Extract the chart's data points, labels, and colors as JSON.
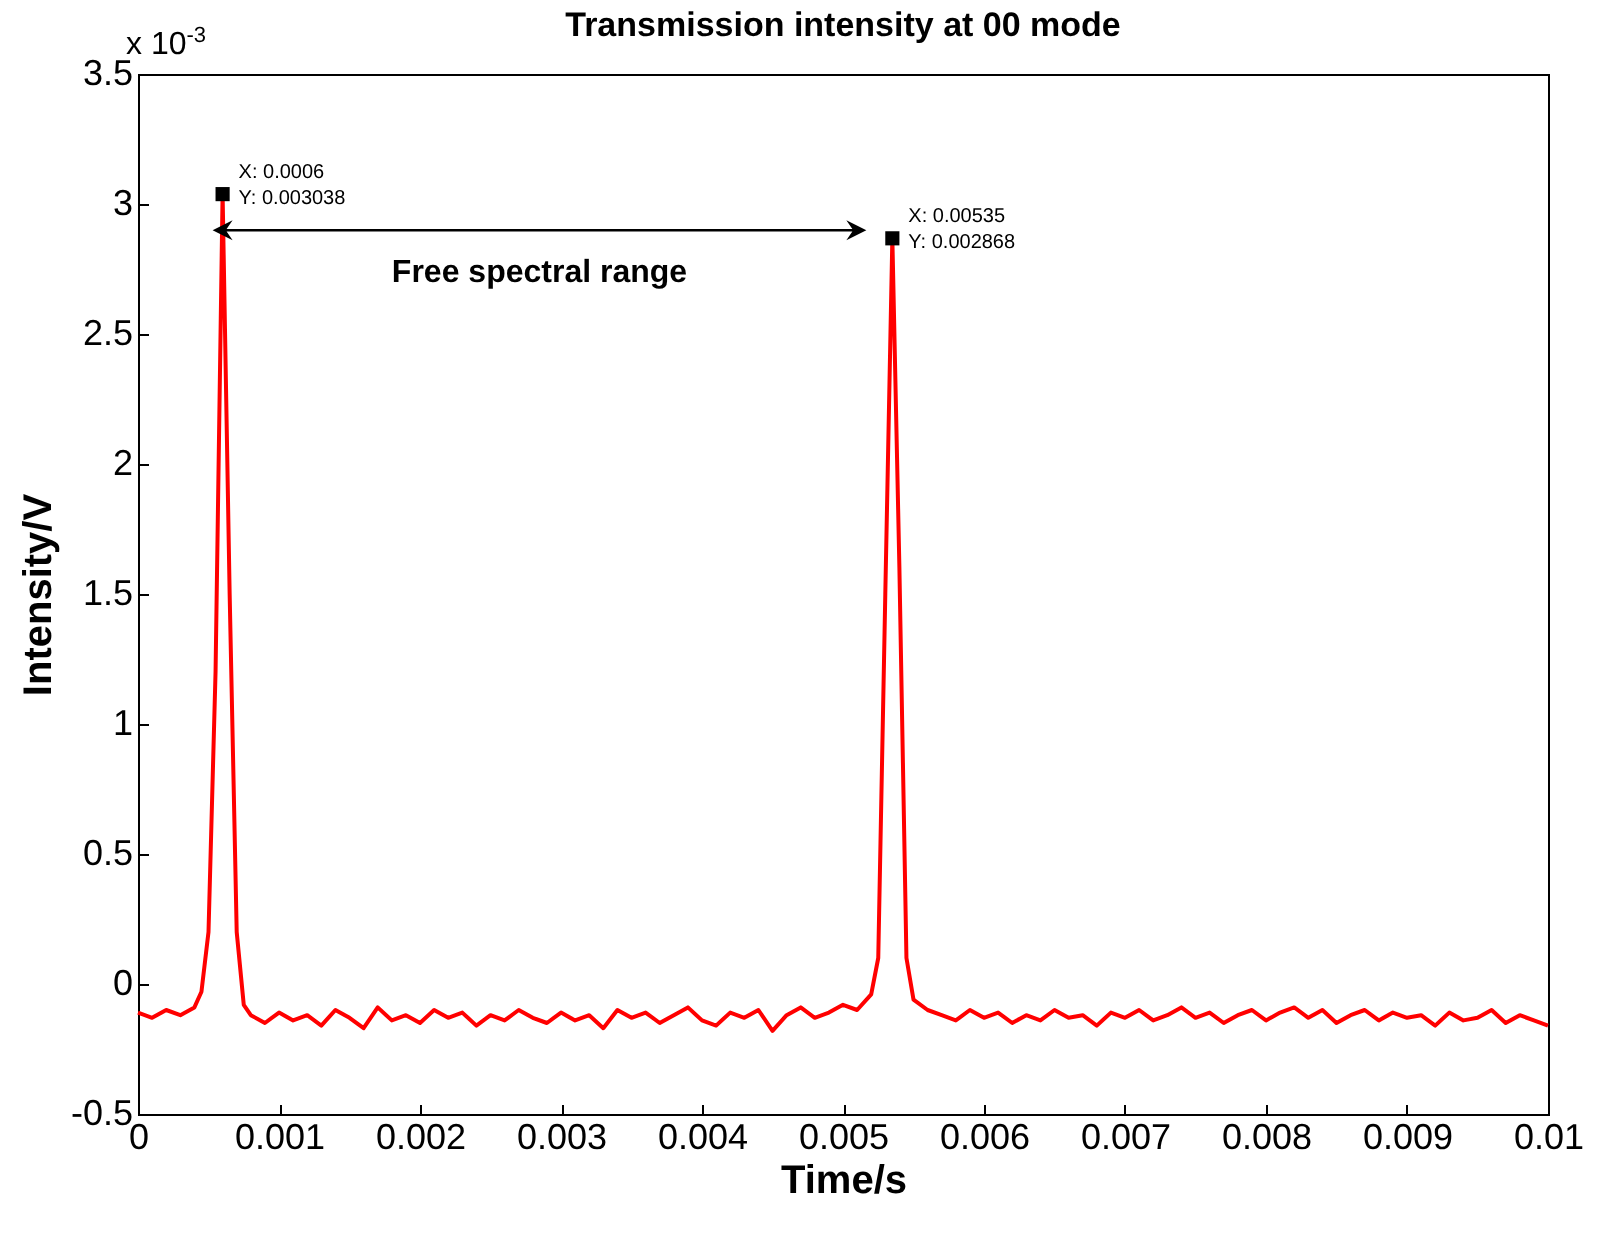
{
  "chart_data": {
    "type": "line",
    "title": "Transmission intensity at 00 mode",
    "xlabel": "Time/s",
    "ylabel": "Intensity/V",
    "x": [
      0,
      0.0001,
      0.0002,
      0.0003,
      0.0004,
      0.00045,
      0.0005,
      0.00055,
      0.0006,
      0.00065,
      0.0007,
      0.00075,
      0.0008,
      0.0009,
      0.001,
      0.0011,
      0.0012,
      0.0013,
      0.0014,
      0.0015,
      0.0016,
      0.0017,
      0.0018,
      0.0019,
      0.002,
      0.0021,
      0.0022,
      0.0023,
      0.0024,
      0.0025,
      0.0026,
      0.0027,
      0.0028,
      0.0029,
      0.003,
      0.0031,
      0.0032,
      0.0033,
      0.0034,
      0.0035,
      0.0036,
      0.0037,
      0.0038,
      0.0039,
      0.004,
      0.0041,
      0.0042,
      0.0043,
      0.0044,
      0.0045,
      0.0046,
      0.0047,
      0.0048,
      0.0049,
      0.005,
      0.0051,
      0.0052,
      0.00525,
      0.0053,
      0.00535,
      0.0054,
      0.00545,
      0.0055,
      0.0056,
      0.0057,
      0.0058,
      0.0059,
      0.006,
      0.0061,
      0.0062,
      0.0063,
      0.0064,
      0.0065,
      0.0066,
      0.0067,
      0.0068,
      0.0069,
      0.007,
      0.0071,
      0.0072,
      0.0073,
      0.0074,
      0.0075,
      0.0076,
      0.0077,
      0.0078,
      0.0079,
      0.008,
      0.0081,
      0.0082,
      0.0083,
      0.0084,
      0.0085,
      0.0086,
      0.0087,
      0.0088,
      0.0089,
      0.009,
      0.0091,
      0.0092,
      0.0093,
      0.0094,
      0.0095,
      0.0096,
      0.0097,
      0.0098,
      0.0099,
      0.01
    ],
    "series": [
      {
        "color": "#ff0000",
        "values": [
          -0.11,
          -0.13,
          -0.1,
          -0.12,
          -0.09,
          -0.03,
          0.2,
          1.2,
          3.038,
          1.5,
          0.2,
          -0.08,
          -0.12,
          -0.15,
          -0.11,
          -0.14,
          -0.12,
          -0.16,
          -0.1,
          -0.13,
          -0.17,
          -0.09,
          -0.14,
          -0.12,
          -0.15,
          -0.1,
          -0.13,
          -0.11,
          -0.16,
          -0.12,
          -0.14,
          -0.1,
          -0.13,
          -0.15,
          -0.11,
          -0.14,
          -0.12,
          -0.17,
          -0.1,
          -0.13,
          -0.11,
          -0.15,
          -0.12,
          -0.09,
          -0.14,
          -0.16,
          -0.11,
          -0.13,
          -0.1,
          -0.18,
          -0.12,
          -0.09,
          -0.13,
          -0.11,
          -0.08,
          -0.1,
          -0.04,
          0.1,
          1.5,
          2.868,
          1.6,
          0.1,
          -0.06,
          -0.1,
          -0.12,
          -0.14,
          -0.1,
          -0.13,
          -0.11,
          -0.15,
          -0.12,
          -0.14,
          -0.1,
          -0.13,
          -0.12,
          -0.16,
          -0.11,
          -0.13,
          -0.1,
          -0.14,
          -0.12,
          -0.09,
          -0.13,
          -0.11,
          -0.15,
          -0.12,
          -0.1,
          -0.14,
          -0.11,
          -0.09,
          -0.13,
          -0.1,
          -0.15,
          -0.12,
          -0.1,
          -0.14,
          -0.11,
          -0.13,
          -0.12,
          -0.16,
          -0.11,
          -0.14,
          -0.13,
          -0.1,
          -0.15,
          -0.12,
          -0.14,
          -0.16
        ]
      }
    ],
    "xlim": [
      0,
      0.01
    ],
    "xticks": [
      0,
      0.001,
      0.002,
      0.003,
      0.004,
      0.005,
      0.006,
      0.007,
      0.008,
      0.009,
      0.01
    ],
    "ylim": [
      -0.5,
      3.5
    ],
    "yticks": [
      -0.5,
      0,
      0.5,
      1,
      1.5,
      2,
      2.5,
      3,
      3.5
    ],
    "annotations": [
      "x 10$^{-3}$",
      {
        "text": "X: 0.0006\nY: 0.003038",
        "x": 0.0006,
        "y": 3.038
      },
      {
        "text": "X: 0.00535\nY: 0.002868",
        "x": 0.00535,
        "y": 2.868
      },
      "Free spectral range"
    ],
    "grid": false,
    "marker": "none",
    "line_style": "solid"
  }
}
